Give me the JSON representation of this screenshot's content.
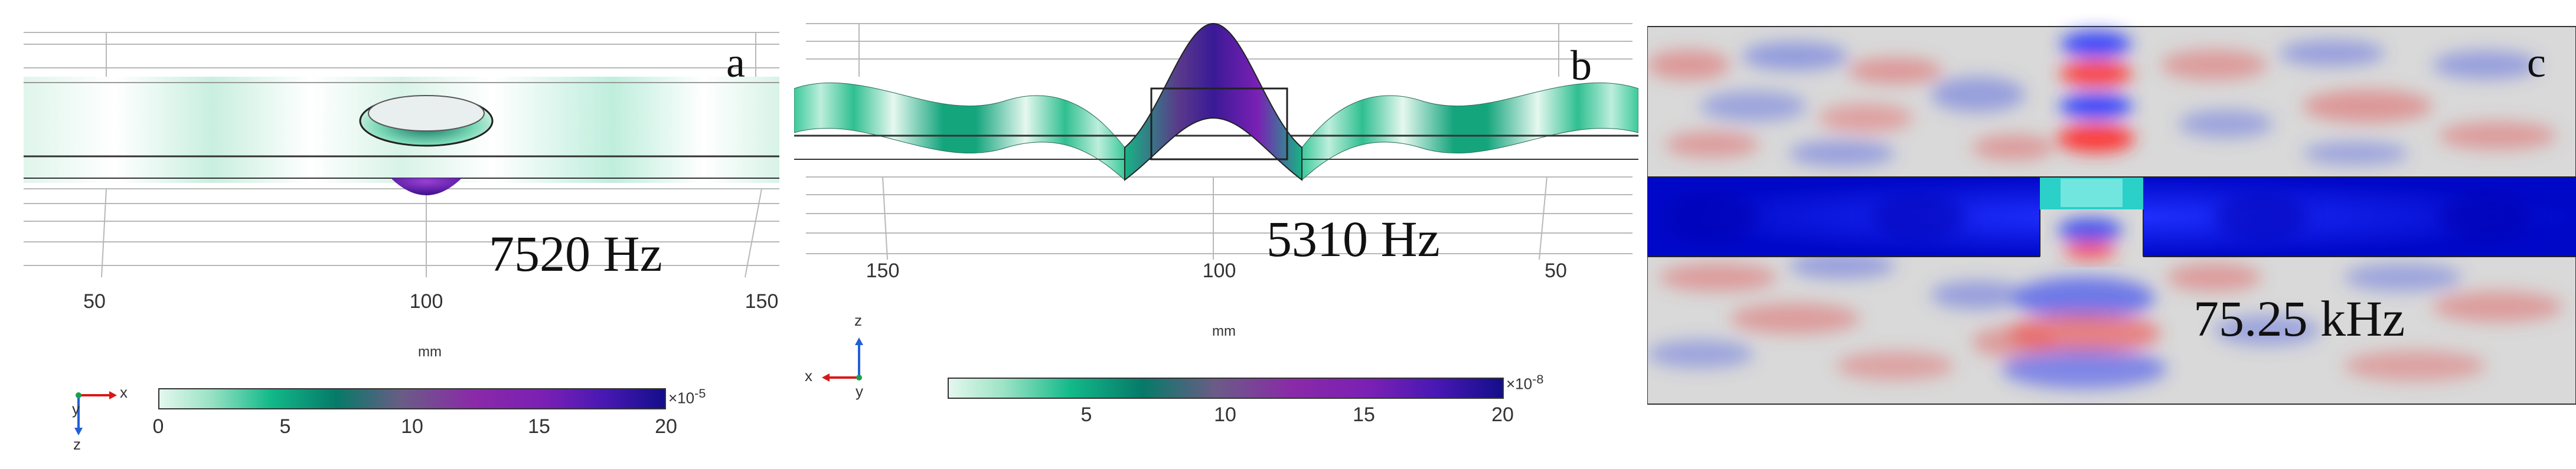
{
  "panels": {
    "a": {
      "letter": "a",
      "frequency": "7520 Hz",
      "axis_ticks": [
        "50",
        "100",
        "150"
      ],
      "axis_unit": "mm",
      "colorbar_ticks": [
        "0",
        "5",
        "10",
        "15",
        "20"
      ],
      "colorbar_exponent": "×10",
      "colorbar_exponent_power": "-5",
      "triad": {
        "x": "x",
        "y": "y",
        "z": "z"
      }
    },
    "b": {
      "letter": "b",
      "frequency": "5310 Hz",
      "axis_ticks": [
        "150",
        "100",
        "50"
      ],
      "axis_unit": "mm",
      "colorbar_ticks": [
        "5",
        "10",
        "15",
        "20"
      ],
      "colorbar_exponent": "×10",
      "colorbar_exponent_power": "-8",
      "triad": {
        "x": "x",
        "y": "y",
        "z": "z"
      }
    },
    "c": {
      "letter": "c",
      "frequency": "75.25 kHz"
    }
  },
  "colors": {
    "mode_green": "#12b989",
    "mode_purple": "#7a20b4",
    "field_blue": "#0a1ee8",
    "field_red": "#e84040",
    "bg_grey": "#d9d9d9"
  }
}
